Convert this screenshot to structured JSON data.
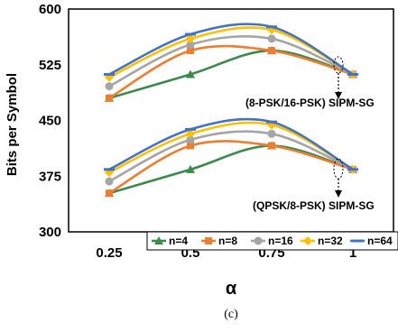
{
  "chart_data": {
    "type": "line",
    "title": "",
    "xlabel": "α",
    "ylabel": "Bits per Symbol",
    "caption": "(c)",
    "x": [
      0.25,
      0.5,
      0.75,
      1
    ],
    "x_tick_labels": [
      "0.25",
      "0.5",
      "0.75",
      "1"
    ],
    "xlim": [
      0.125,
      1.125
    ],
    "ylim": [
      300,
      600
    ],
    "y_ticks": [
      300,
      375,
      450,
      525,
      600
    ],
    "y_tick_labels": [
      "300",
      "375",
      "450",
      "525",
      "600"
    ],
    "grid": false,
    "legend_position": "bottom-right",
    "legend": [
      "n=4",
      "n=8",
      "n=16",
      "n=32",
      "n=64"
    ],
    "colors": {
      "n4": "#3a8a4a",
      "n8": "#ed7d31",
      "n16": "#a5a5a5",
      "n32": "#ffc000",
      "n64": "#4472c4"
    },
    "markers": {
      "n4": "triangle",
      "n8": "square",
      "n16": "circle",
      "n32": "diamond",
      "n64": "dash"
    },
    "groups": [
      {
        "label": "(8-PSK/16-PSK) SIPM-SG",
        "series": [
          {
            "name": "n=4",
            "key": "n4",
            "values": [
              480,
              512,
              544,
              512
            ]
          },
          {
            "name": "n=8",
            "key": "n8",
            "values": [
              480,
              544,
              544,
              512
            ]
          },
          {
            "name": "n=16",
            "key": "n16",
            "values": [
              496,
              552,
              560,
              512
            ]
          },
          {
            "name": "n=32",
            "key": "n32",
            "values": [
              508,
              560,
              572,
              512
            ]
          },
          {
            "name": "n=64",
            "key": "n64",
            "values": [
              512,
              566,
              576,
              512
            ]
          }
        ]
      },
      {
        "label": "(QPSK/8-PSK) SIPM-SG",
        "series": [
          {
            "name": "n=4",
            "key": "n4",
            "values": [
              352,
              384,
              416,
              384
            ]
          },
          {
            "name": "n=8",
            "key": "n8",
            "values": [
              352,
              416,
              416,
              384
            ]
          },
          {
            "name": "n=16",
            "key": "n16",
            "values": [
              368,
              424,
              432,
              384
            ]
          },
          {
            "name": "n=32",
            "key": "n32",
            "values": [
              380,
              432,
              444,
              384
            ]
          },
          {
            "name": "n=64",
            "key": "n64",
            "values": [
              384,
              438,
              448,
              384
            ]
          }
        ]
      }
    ]
  }
}
